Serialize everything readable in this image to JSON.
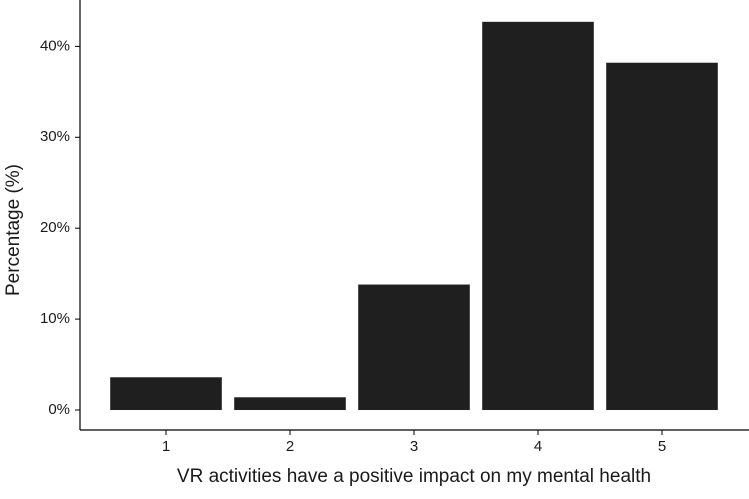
{
  "chart_data": {
    "type": "bar",
    "x_label": "VR activities have a positive impact on my mental health",
    "y_label": "Percentage (%)",
    "categories": [
      "1",
      "2",
      "3",
      "4",
      "5"
    ],
    "values": [
      3.6,
      1.4,
      13.8,
      42.7,
      38.2
    ],
    "color": "#1f1f1f",
    "ylim": [
      -2.2,
      45.1
    ],
    "yticks": [
      {
        "value": 0,
        "label": "0%"
      },
      {
        "value": 10,
        "label": "10%"
      },
      {
        "value": 20,
        "label": "20%"
      },
      {
        "value": 30,
        "label": "30%"
      },
      {
        "value": 40,
        "label": "40%"
      }
    ],
    "grid": false
  }
}
